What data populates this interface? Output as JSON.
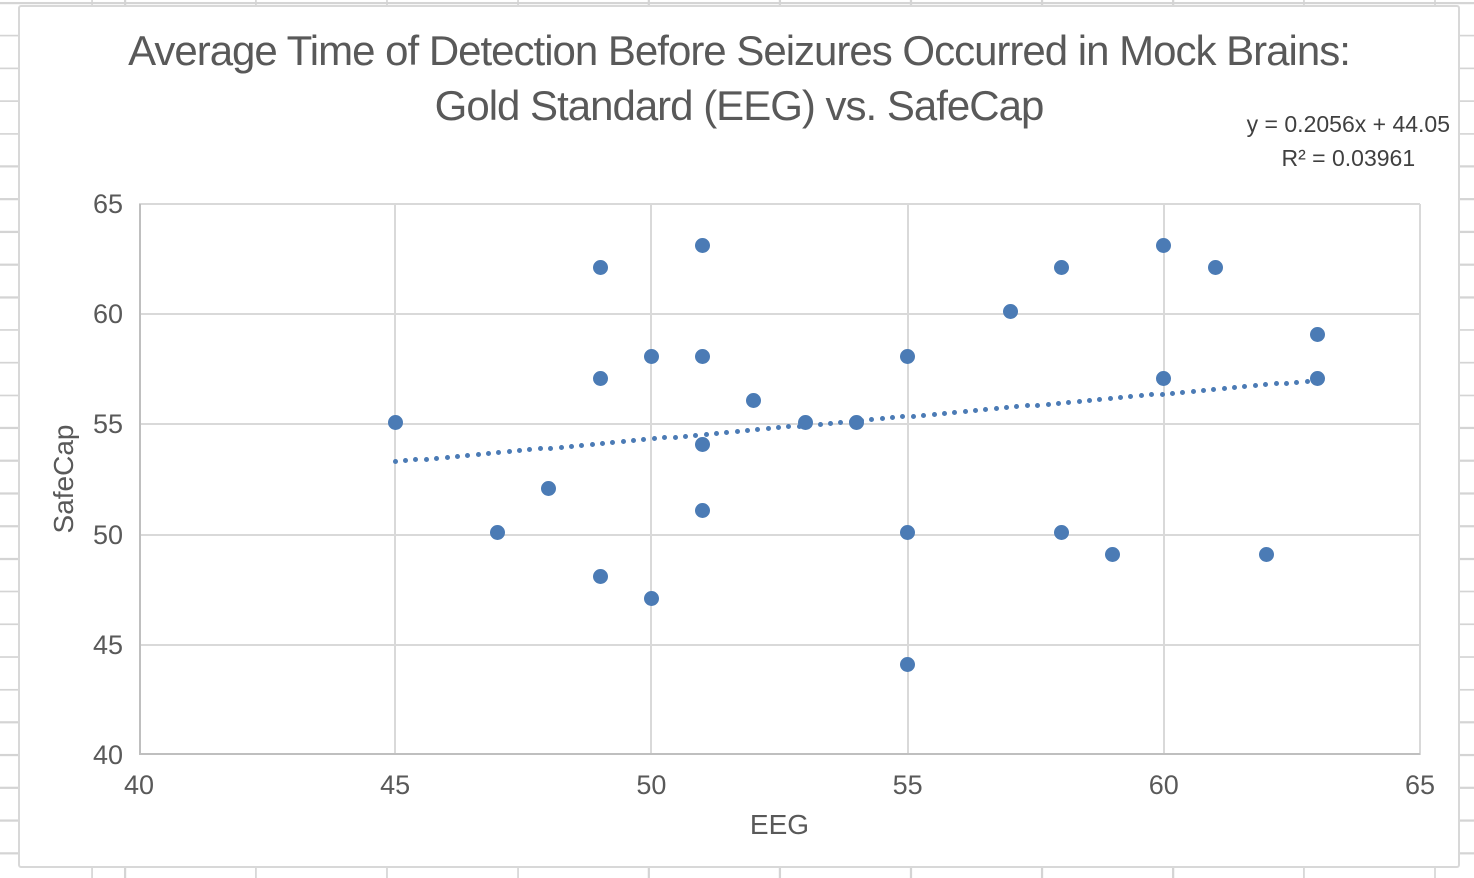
{
  "chart_data": {
    "type": "scatter",
    "title": "Average Time of Detection Before Seizures Occurred in Mock Brains:\nGold Standard (EEG) vs. SafeCap",
    "xlabel": "EEG",
    "ylabel": "SafeCap",
    "xlim": [
      40,
      65
    ],
    "ylim": [
      40,
      65
    ],
    "xticks": [
      40,
      45,
      50,
      55,
      60,
      65
    ],
    "yticks": [
      40,
      45,
      50,
      55,
      60,
      65
    ],
    "grid": "both",
    "legend": "none",
    "points": [
      [
        45,
        55.1
      ],
      [
        47,
        50.1
      ],
      [
        48,
        52.1
      ],
      [
        49,
        62.1
      ],
      [
        49,
        57.1
      ],
      [
        49,
        48.1
      ],
      [
        50,
        58.1
      ],
      [
        50,
        47.1
      ],
      [
        51,
        63.1
      ],
      [
        51,
        58.1
      ],
      [
        51,
        54.1
      ],
      [
        51,
        51.1
      ],
      [
        52,
        56.1
      ],
      [
        53,
        55.1
      ],
      [
        54,
        55.1
      ],
      [
        55,
        58.1
      ],
      [
        55,
        50.1
      ],
      [
        55,
        44.1
      ],
      [
        57,
        60.1
      ],
      [
        58,
        62.1
      ],
      [
        58,
        50.1
      ],
      [
        59,
        49.1
      ],
      [
        60,
        63.1
      ],
      [
        60,
        57.1
      ],
      [
        61,
        62.1
      ],
      [
        62,
        49.1
      ],
      [
        63,
        59.1
      ],
      [
        63,
        57.1
      ]
    ],
    "trendline": {
      "style": "dotted",
      "slope": 0.2056,
      "intercept": 44.05,
      "x_start": 45,
      "x_end": 63,
      "equation_label": "y = 0.2056x + 44.05",
      "r2_label": "R² = 0.03961"
    }
  },
  "colors": {
    "marker": "#4B7BB5",
    "trendline": "#4B7BB5",
    "gridline": "#D9D9D9",
    "axis_line": "#BFBFBF",
    "text": "#595959",
    "equation_text": "#404040",
    "chart_border": "#D8D8D8",
    "worksheet_grid": "#D4D4D4",
    "background": "#FFFFFF"
  }
}
